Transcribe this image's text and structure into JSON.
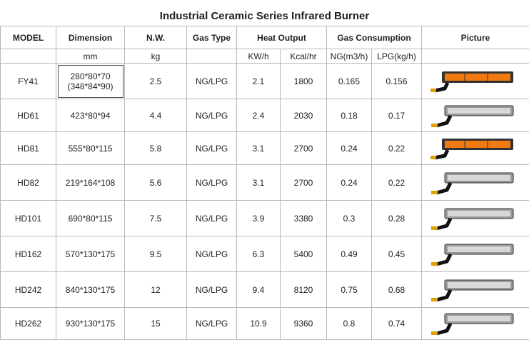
{
  "title": "Industrial Ceramic Series Infrared Burner",
  "header": [
    "MODEL",
    "Dimension",
    "N.W.",
    "Gas Type",
    "Heat Output",
    "Gas Consumption",
    "Picture"
  ],
  "units": [
    "mm",
    "kg",
    "KW/h",
    "Kcal/hr",
    "NG(m3/h)",
    "LPG(kg/h)"
  ],
  "rows": [
    [
      "FY41",
      [
        "280*80*70",
        "(348*84*90)"
      ],
      "2.5",
      "NG/LPG",
      "2.1",
      "1800",
      "0.165",
      "0.156"
    ],
    [
      "HD61",
      [
        "423*80*94"
      ],
      "4.4",
      "NG/LPG",
      "2.4",
      "2030",
      "0.18",
      "0.17"
    ],
    [
      "HD81",
      [
        "555*80*115"
      ],
      "5.8",
      "NG/LPG",
      "3.1",
      "2700",
      "0.24",
      "0.22"
    ],
    [
      "HD82",
      [
        "219*164*108"
      ],
      "5.6",
      "NG/LPG",
      "3.1",
      "2700",
      "0.24",
      "0.22"
    ],
    [
      "HD101",
      [
        "690*80*115"
      ],
      "7.5",
      "NG/LPG",
      "3.9",
      "3380",
      "0.3",
      "0.28"
    ],
    [
      "HD162",
      [
        "570*130*175"
      ],
      "9.5",
      "NG/LPG",
      "6.3",
      "5400",
      "0.49",
      "0.45"
    ],
    [
      "HD242",
      [
        "840*130*175"
      ],
      "12",
      "NG/LPG",
      "9.4",
      "8120",
      "0.75",
      "0.68"
    ],
    [
      "HD262",
      [
        "930*130*175"
      ],
      "15",
      "NG/LPG",
      "10.9",
      "9360",
      "0.8",
      "0.74"
    ]
  ]
}
